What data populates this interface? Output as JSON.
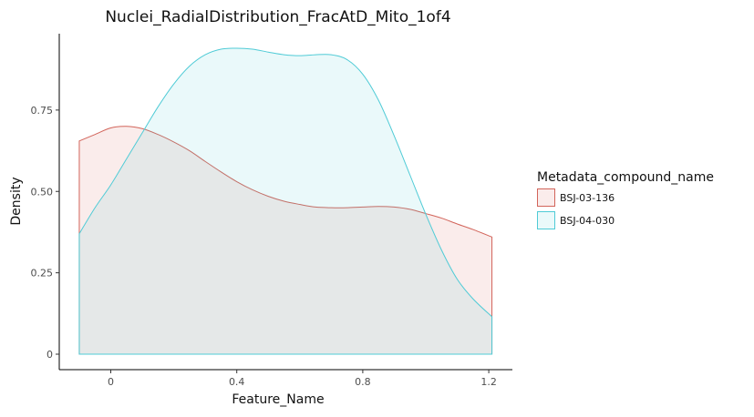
{
  "chart_data": {
    "type": "area",
    "subtype": "density",
    "title": "Nuclei_RadialDistribution_FracAtD_Mito_1of4",
    "xlabel": "Feature_Name",
    "ylabel": "Density",
    "xlim": [
      -0.1,
      1.21
    ],
    "ylim": [
      0,
      0.95
    ],
    "x_ticks": [
      0,
      0.4,
      0.8,
      1.2
    ],
    "x_tick_labels": [
      "0",
      "0.4",
      "0.8",
      "1.2"
    ],
    "y_ticks": [
      0,
      0.25,
      0.5,
      0.75
    ],
    "y_tick_labels": [
      "0",
      "0.25",
      "0.50",
      "0.75"
    ],
    "grid": false,
    "legend": {
      "title": "Metadata_compound_name",
      "position": "right"
    },
    "series": [
      {
        "name": "BSJ-03-136",
        "color": "#d2645a",
        "fill": "#fbe9e7",
        "x": [
          -0.1,
          -0.05,
          0.0,
          0.05,
          0.1,
          0.15,
          0.2,
          0.25,
          0.3,
          0.35,
          0.4,
          0.45,
          0.5,
          0.55,
          0.6,
          0.65,
          0.7,
          0.75,
          0.8,
          0.85,
          0.9,
          0.95,
          1.0,
          1.05,
          1.1,
          1.15,
          1.21
        ],
        "values": [
          0.655,
          0.675,
          0.695,
          0.7,
          0.693,
          0.675,
          0.652,
          0.625,
          0.592,
          0.56,
          0.53,
          0.505,
          0.485,
          0.47,
          0.46,
          0.452,
          0.45,
          0.45,
          0.452,
          0.454,
          0.452,
          0.445,
          0.432,
          0.418,
          0.4,
          0.383,
          0.36
        ]
      },
      {
        "name": "BSJ-04-030",
        "color": "#4fcbd6",
        "fill": "#e8f8f9",
        "x": [
          -0.1,
          -0.05,
          0.0,
          0.05,
          0.1,
          0.15,
          0.2,
          0.25,
          0.3,
          0.35,
          0.4,
          0.45,
          0.5,
          0.55,
          0.6,
          0.65,
          0.7,
          0.75,
          0.8,
          0.85,
          0.9,
          0.95,
          1.0,
          1.05,
          1.1,
          1.15,
          1.21
        ],
        "values": [
          0.37,
          0.45,
          0.52,
          0.6,
          0.68,
          0.76,
          0.83,
          0.885,
          0.92,
          0.937,
          0.94,
          0.937,
          0.928,
          0.92,
          0.917,
          0.92,
          0.92,
          0.905,
          0.86,
          0.78,
          0.67,
          0.55,
          0.43,
          0.32,
          0.23,
          0.17,
          0.115
        ]
      }
    ]
  }
}
